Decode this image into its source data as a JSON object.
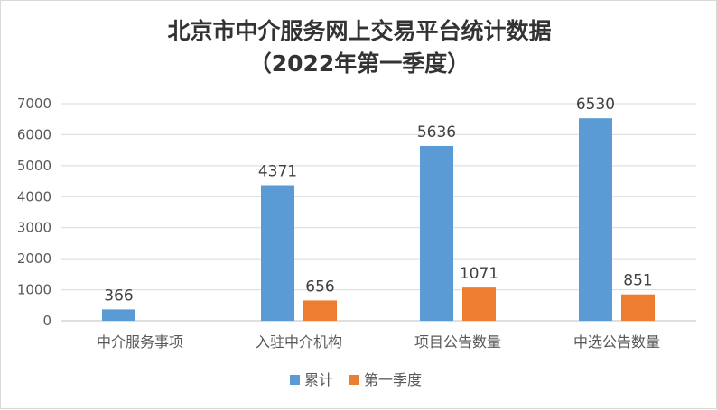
{
  "chart_data": {
    "type": "bar",
    "title": "北京市中介服务网上交易平台统计数据",
    "subtitle": "（2022年第一季度）",
    "xlabel": "",
    "ylabel": "",
    "categories": [
      "中介服务事项",
      "入驻中介机构",
      "项目公告数量",
      "中选公告数量"
    ],
    "series": [
      {
        "name": "累计",
        "color": "#5b9bd5",
        "values": [
          366,
          4371,
          5636,
          6530
        ]
      },
      {
        "name": "第一季度",
        "color": "#ed7d31",
        "values": [
          null,
          656,
          1071,
          851
        ]
      }
    ],
    "ylim": [
      0,
      7000
    ],
    "yticks": [
      0,
      1000,
      2000,
      3000,
      4000,
      5000,
      6000,
      7000
    ],
    "grid": true,
    "legend": "bottom"
  }
}
